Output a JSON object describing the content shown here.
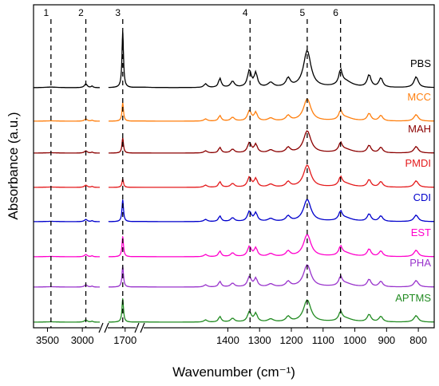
{
  "chart_data": {
    "type": "line",
    "xlabel": "Wavenumber (cm⁻¹)",
    "ylabel": "Absorbance (a.u.)",
    "x_ticks": [
      "3500",
      "3000",
      "1700",
      "1400",
      "1300",
      "1200",
      "1100",
      "1000",
      "900",
      "800"
    ],
    "x_segments": [
      {
        "from": 3700,
        "to": 2750
      },
      {
        "from": 1790,
        "to": 1660
      },
      {
        "from": 1660,
        "to": 750
      }
    ],
    "markers": [
      {
        "label": "1",
        "x": 3450
      },
      {
        "label": "2",
        "x": 2950
      },
      {
        "label": "3",
        "x": 1713
      },
      {
        "label": "4",
        "x": 1330
      },
      {
        "label": "5",
        "x": 1150
      },
      {
        "label": "6",
        "x": 1045
      }
    ],
    "series": [
      {
        "name": "PBS",
        "color": "#000000",
        "baseline": 0.0,
        "peak_scale": 1.0
      },
      {
        "name": "MCC",
        "color": "#FF7F0E",
        "baseline": 1.0,
        "peak_scale": 0.55
      },
      {
        "name": "MAH",
        "color": "#8B0000",
        "baseline": 2.0,
        "peak_scale": 0.45
      },
      {
        "name": "PMDI",
        "color": "#E41A1C",
        "baseline": 3.0,
        "peak_scale": 0.25
      },
      {
        "name": "CDI",
        "color": "#0000CC",
        "baseline": 4.0,
        "peak_scale": 0.65
      },
      {
        "name": "EST",
        "color": "#FF00CC",
        "baseline": 5.0,
        "peak_scale": 0.6
      },
      {
        "name": "PHA",
        "color": "#9933CC",
        "baseline": 6.0,
        "peak_scale": 0.62
      },
      {
        "name": "APTMS",
        "color": "#228B22",
        "baseline": 7.0,
        "peak_scale": 0.7
      }
    ],
    "peaks": [
      {
        "x": 3450,
        "height": 0.02,
        "width": 120
      },
      {
        "x": 2950,
        "height": 0.12,
        "width": 25
      },
      {
        "x": 2860,
        "height": 0.05,
        "width": 15
      },
      {
        "x": 1713,
        "height": 1.8,
        "width": 5
      },
      {
        "x": 1470,
        "height": 0.12,
        "width": 6
      },
      {
        "x": 1425,
        "height": 0.3,
        "width": 5
      },
      {
        "x": 1385,
        "height": 0.2,
        "width": 7
      },
      {
        "x": 1332,
        "height": 0.55,
        "width": 7
      },
      {
        "x": 1312,
        "height": 0.45,
        "width": 6
      },
      {
        "x": 1265,
        "height": 0.15,
        "width": 10
      },
      {
        "x": 1210,
        "height": 0.28,
        "width": 8
      },
      {
        "x": 1150,
        "height": 1.2,
        "width": 14
      },
      {
        "x": 1045,
        "height": 0.45,
        "width": 6
      },
      {
        "x": 1030,
        "height": 0.2,
        "width": 25
      },
      {
        "x": 955,
        "height": 0.4,
        "width": 7
      },
      {
        "x": 918,
        "height": 0.3,
        "width": 7
      },
      {
        "x": 807,
        "height": 0.35,
        "width": 8
      }
    ]
  }
}
